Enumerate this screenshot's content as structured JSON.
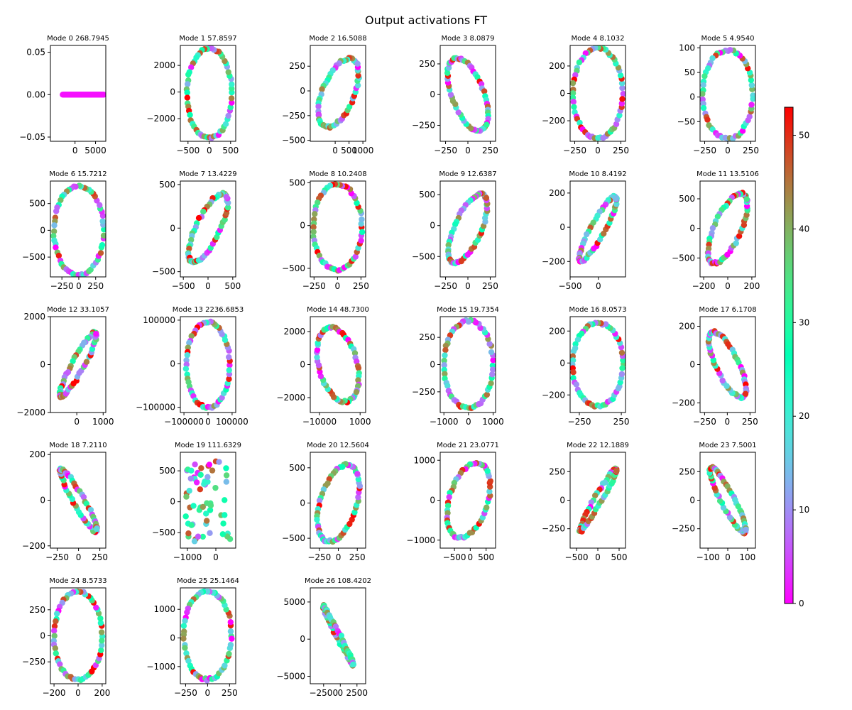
{
  "figure": {
    "title": "Output activations FT"
  },
  "colorbar": {
    "vmin": 0,
    "vmax": 53,
    "ticks": [
      "0",
      "10",
      "20",
      "30",
      "40",
      "50"
    ],
    "colormap": "rainbow"
  },
  "chart_data": [
    {
      "type": "scatter",
      "title": "Mode 0 268.7945",
      "shape": "flat",
      "xlim": [
        -6000,
        7500
      ],
      "ylim": [
        -0.055,
        0.058
      ],
      "xticks": [
        "0",
        "5000"
      ],
      "yticks": [
        "-0.05",
        "0.00",
        "0.05"
      ],
      "params": {
        "cx": 2000,
        "cy": 0,
        "rx": 5000,
        "ry": 0,
        "a": 0,
        "cs": 1
      }
    },
    {
      "type": "scatter",
      "title": "Mode 1 57.8597",
      "shape": "ellipse",
      "xlim": [
        -680,
        620
      ],
      "ylim": [
        -3700,
        3500
      ],
      "xticks": [
        "-500",
        "0",
        "500"
      ],
      "yticks": [
        "-2000",
        "0",
        "2000"
      ],
      "params": {
        "cx": 0,
        "cy": -100,
        "rx": 530,
        "ry": 3350,
        "a": 0.1,
        "cs": 1
      }
    },
    {
      "type": "scatter",
      "title": "Mode 2 16.5088",
      "shape": "ellipse",
      "xlim": [
        -900,
        1100
      ],
      "ylim": [
        -510,
        460
      ],
      "xticks": [
        "0",
        "500",
        "1000"
      ],
      "yticks": [
        "-500",
        "-250",
        "0",
        "250"
      ],
      "params": {
        "cx": 120,
        "cy": -20,
        "rx": 900,
        "ry": 430,
        "a": 0.7,
        "cs": 2
      }
    },
    {
      "type": "scatter",
      "title": "Mode 3 8.0879",
      "shape": "ellipse",
      "xlim": [
        -310,
        310
      ],
      "ylim": [
        -380,
        400
      ],
      "xticks": [
        "-250",
        "0",
        "250"
      ],
      "yticks": [
        "-250",
        "0",
        "250"
      ],
      "params": {
        "cx": 0,
        "cy": 0,
        "rx": 280,
        "ry": 370,
        "a": -0.7,
        "cs": 3
      }
    },
    {
      "type": "scatter",
      "title": "Mode 4 8.1032",
      "shape": "ellipse",
      "xlim": [
        -300,
        300
      ],
      "ylim": [
        -350,
        350
      ],
      "xticks": [
        "-250",
        "0",
        "250"
      ],
      "yticks": [
        "-200",
        "0",
        "200"
      ],
      "params": {
        "cx": 0,
        "cy": 0,
        "rx": 270,
        "ry": 330,
        "a": 0.45,
        "cs": 4
      }
    },
    {
      "type": "scatter",
      "title": "Mode 5 4.9540",
      "shape": "ellipse",
      "xlim": [
        -300,
        300
      ],
      "ylim": [
        -90,
        105
      ],
      "xticks": [
        "-250",
        "0",
        "250"
      ],
      "yticks": [
        "-50",
        "0",
        "50",
        "100"
      ],
      "params": {
        "cx": 0,
        "cy": 5,
        "rx": 270,
        "ry": 90,
        "a": 0.3,
        "cs": 5
      }
    },
    {
      "type": "scatter",
      "title": "Mode 6 15.7212",
      "shape": "ellipse",
      "xlim": [
        -420,
        400
      ],
      "ylim": [
        -870,
        920
      ],
      "xticks": [
        "-250",
        "0",
        "250"
      ],
      "yticks": [
        "-500",
        "0",
        "500"
      ],
      "params": {
        "cx": 0,
        "cy": 0,
        "rx": 370,
        "ry": 830,
        "a": 0.35,
        "cs": 6
      }
    },
    {
      "type": "scatter",
      "title": "Mode 7 13.4229",
      "shape": "ellipse",
      "xlim": [
        -560,
        560
      ],
      "ylim": [
        -560,
        540
      ],
      "xticks": [
        "-500",
        "0",
        "500"
      ],
      "yticks": [
        "-500",
        "0",
        "500"
      ],
      "params": {
        "cx": 0,
        "cy": 0,
        "rx": 520,
        "ry": 520,
        "a": 0.85,
        "cs": 7
      }
    },
    {
      "type": "scatter",
      "title": "Mode 8 10.2408",
      "shape": "ellipse",
      "xlim": [
        -290,
        300
      ],
      "ylim": [
        -600,
        520
      ],
      "xticks": [
        "-250",
        "0",
        "250"
      ],
      "yticks": [
        "-500",
        "0",
        "500"
      ],
      "params": {
        "cx": 0,
        "cy": -20,
        "rx": 260,
        "ry": 500,
        "a": 0.15,
        "cs": 8
      }
    },
    {
      "type": "scatter",
      "title": "Mode 9 12.6387",
      "shape": "ellipse",
      "xlim": [
        -310,
        310
      ],
      "ylim": [
        -830,
        720
      ],
      "xticks": [
        "-250",
        "0",
        "250"
      ],
      "yticks": [
        "-500",
        "0",
        "500"
      ],
      "params": {
        "cx": 0,
        "cy": -50,
        "rx": 280,
        "ry": 720,
        "a": 0.8,
        "cs": 9
      }
    },
    {
      "type": "scatter",
      "title": "Mode 10 8.4192",
      "shape": "ellipse",
      "xlim": [
        -500,
        480
      ],
      "ylim": [
        -290,
        270
      ],
      "xticks": [
        "-500",
        "0"
      ],
      "yticks": [
        "-200",
        "0",
        "200"
      ],
      "params": {
        "cx": -10,
        "cy": -10,
        "rx": 460,
        "ry": 260,
        "a": 0.95,
        "cs": 10
      }
    },
    {
      "type": "scatter",
      "title": "Mode 11 13.5106",
      "shape": "ellipse",
      "xlim": [
        -230,
        230
      ],
      "ylim": [
        -820,
        800
      ],
      "xticks": [
        "-200",
        "0",
        "200"
      ],
      "yticks": [
        "-500",
        "0",
        "500"
      ],
      "params": {
        "cx": 0,
        "cy": 0,
        "rx": 210,
        "ry": 760,
        "a": 0.8,
        "cs": 11
      }
    },
    {
      "type": "scatter",
      "title": "Mode 12 33.1057",
      "shape": "ellipse",
      "xlim": [
        -1000,
        1100
      ],
      "ylim": [
        -2000,
        2000
      ],
      "xticks": [
        "0",
        "1000"
      ],
      "yticks": [
        "-2000",
        "0",
        "2000"
      ],
      "params": {
        "cx": 50,
        "cy": 0,
        "rx": 950,
        "ry": 1850,
        "a": 0.96,
        "cs": 12
      }
    },
    {
      "type": "scatter",
      "title": "Mode 13 2236.6853",
      "shape": "ellipse",
      "xlim": [
        -115000,
        115000
      ],
      "ylim": [
        -112000,
        108000
      ],
      "xticks": [
        "-100000",
        "0",
        "100000"
      ],
      "yticks": [
        "-100000",
        "0",
        "100000"
      ],
      "params": {
        "cx": 0,
        "cy": -3000,
        "rx": 90000,
        "ry": 98000,
        "a": 0.05,
        "cs": 13
      }
    },
    {
      "type": "scatter",
      "title": "Mode 14 48.7300",
      "shape": "ellipse",
      "xlim": [
        -12500,
        2500
      ],
      "ylim": [
        -2900,
        2900
      ],
      "xticks": [
        "-10000",
        "1000"
      ],
      "yticks": [
        "-2000",
        "0",
        "2000"
      ],
      "params": {
        "cx": -5000,
        "cy": 0,
        "rx": 6500,
        "ry": 2600,
        "a": -0.5,
        "cs": 14
      }
    },
    {
      "type": "scatter",
      "title": "Mode 15 19.7354",
      "shape": "ellipse",
      "xlim": [
        -1150,
        1100
      ],
      "ylim": [
        -440,
        440
      ],
      "xticks": [
        "-1000",
        "0",
        "1000"
      ],
      "yticks": [
        "-250",
        "0",
        "250"
      ],
      "params": {
        "cx": 0,
        "cy": 0,
        "rx": 1000,
        "ry": 400,
        "a": -0.45,
        "cs": 15
      }
    },
    {
      "type": "scatter",
      "title": "Mode 16 8.0573",
      "shape": "ellipse",
      "xlim": [
        -360,
        300
      ],
      "ylim": [
        -310,
        290
      ],
      "xticks": [
        "-250",
        "250"
      ],
      "yticks": [
        "-200",
        "0",
        "200"
      ],
      "params": {
        "cx": -30,
        "cy": -10,
        "rx": 300,
        "ry": 260,
        "a": -0.45,
        "cs": 16
      }
    },
    {
      "type": "scatter",
      "title": "Mode 17 6.1708",
      "shape": "ellipse",
      "xlim": [
        -300,
        310
      ],
      "ylim": [
        -250,
        250
      ],
      "xticks": [
        "-250",
        "0",
        "250"
      ],
      "yticks": [
        "-200",
        "0",
        "200"
      ],
      "params": {
        "cx": 0,
        "cy": 0,
        "rx": 270,
        "ry": 225,
        "a": -0.85,
        "cs": 17
      }
    },
    {
      "type": "scatter",
      "title": "Mode 18 7.2110",
      "shape": "ellipse",
      "xlim": [
        -330,
        320
      ],
      "ylim": [
        -210,
        210
      ],
      "xticks": [
        "-250",
        "0",
        "250"
      ],
      "yticks": [
        "-200",
        "0",
        "200"
      ],
      "params": {
        "cx": 0,
        "cy": 0,
        "rx": 300,
        "ry": 190,
        "a": -0.97,
        "cs": 18
      }
    },
    {
      "type": "scatter",
      "title": "Mode 19 111.6329",
      "shape": "cloud",
      "xlim": [
        -1250,
        700
      ],
      "ylim": [
        -750,
        800
      ],
      "xticks": [
        "-1000",
        "0"
      ],
      "yticks": [
        "-500",
        "0",
        "500"
      ],
      "params": {
        "cx": -250,
        "cy": 0,
        "rx": 900,
        "ry": 700,
        "a": 0,
        "cs": 19
      }
    },
    {
      "type": "scatter",
      "title": "Mode 20 12.5604",
      "shape": "ellipse",
      "xlim": [
        -370,
        360
      ],
      "ylim": [
        -640,
        720
      ],
      "xticks": [
        "-250",
        "0",
        "250"
      ],
      "yticks": [
        "-500",
        "0",
        "500"
      ],
      "params": {
        "cx": 0,
        "cy": 0,
        "rx": 330,
        "ry": 650,
        "a": 0.6,
        "cs": 20
      }
    },
    {
      "type": "scatter",
      "title": "Mode 21 23.0771",
      "shape": "ellipse",
      "xlim": [
        -950,
        800
      ],
      "ylim": [
        -1200,
        1200
      ],
      "xticks": [
        "-500",
        "0",
        "500"
      ],
      "yticks": [
        "-1000",
        "0",
        "1000"
      ],
      "params": {
        "cx": -50,
        "cy": 0,
        "rx": 800,
        "ry": 1100,
        "a": 0.55,
        "cs": 21
      }
    },
    {
      "type": "scatter",
      "title": "Mode 22 12.1889",
      "shape": "ellipse",
      "xlim": [
        -650,
        650
      ],
      "ylim": [
        -420,
        420
      ],
      "xticks": [
        "-500",
        "0",
        "500"
      ],
      "yticks": [
        "-250",
        "0",
        "250"
      ],
      "params": {
        "cx": 0,
        "cy": 0,
        "rx": 600,
        "ry": 380,
        "a": 0.985,
        "cs": 22
      }
    },
    {
      "type": "scatter",
      "title": "Mode 23 7.5001",
      "shape": "ellipse",
      "xlim": [
        -140,
        140
      ],
      "ylim": [
        -420,
        420
      ],
      "xticks": [
        "-100",
        "0",
        "100"
      ],
      "yticks": [
        "-250",
        "0",
        "250"
      ],
      "params": {
        "cx": 0,
        "cy": 0,
        "rx": 125,
        "ry": 390,
        "a": -0.95,
        "cs": 23
      }
    },
    {
      "type": "scatter",
      "title": "Mode 24 8.5733",
      "shape": "ellipse",
      "xlim": [
        -230,
        230
      ],
      "ylim": [
        -460,
        460
      ],
      "xticks": [
        "-200",
        "0",
        "200"
      ],
      "yticks": [
        "-250",
        "0",
        "250"
      ],
      "params": {
        "cx": 0,
        "cy": 0,
        "rx": 200,
        "ry": 420,
        "a": 0.1,
        "cs": 24
      }
    },
    {
      "type": "scatter",
      "title": "Mode 25 25.1464",
      "shape": "ellipse",
      "xlim": [
        -310,
        320
      ],
      "ylim": [
        -1600,
        1750
      ],
      "xticks": [
        "-250",
        "0",
        "250"
      ],
      "yticks": [
        "-1000",
        "0",
        "1000"
      ],
      "params": {
        "cx": 0,
        "cy": 100,
        "rx": 270,
        "ry": 1550,
        "a": 0.3,
        "cs": 25
      }
    },
    {
      "type": "scatter",
      "title": "Mode 26 108.4202",
      "shape": "ellipse",
      "xlim": [
        -4500,
        3800
      ],
      "ylim": [
        -6000,
        6900
      ],
      "xticks": [
        "-2500",
        "0",
        "2500"
      ],
      "yticks": [
        "-5000",
        "0",
        "5000"
      ],
      "params": {
        "cx": -300,
        "cy": 500,
        "rx": 3200,
        "ry": 5600,
        "a": -0.995,
        "cs": 26
      }
    }
  ]
}
